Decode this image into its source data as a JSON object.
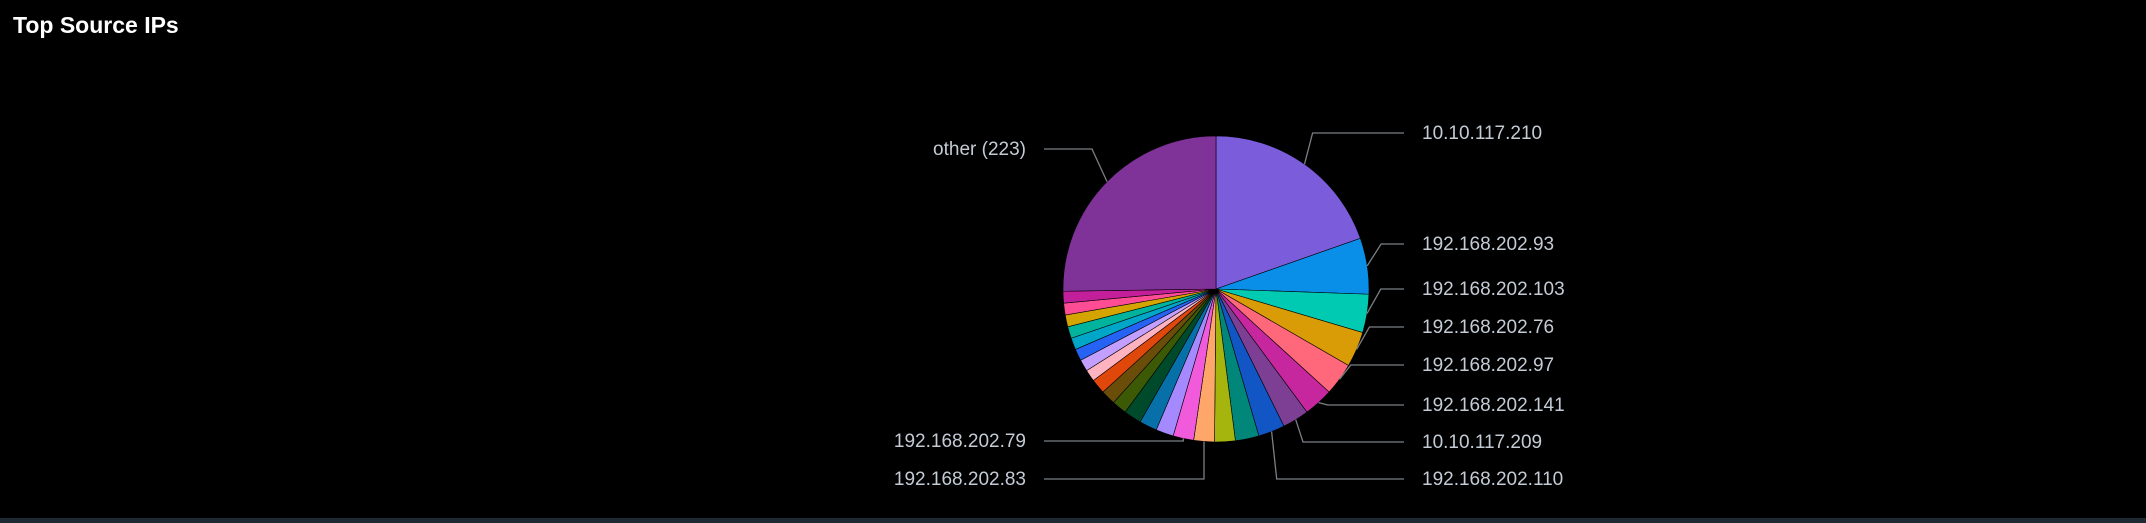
{
  "panel": {
    "title": "Top Source IPs"
  },
  "chart_data": {
    "type": "pie",
    "title": "Top Source IPs",
    "slices": [
      {
        "label": "10.10.117.210",
        "value": 63,
        "color": "#7b5cdb",
        "labeled": true
      },
      {
        "label": "192.168.202.93",
        "value": 19,
        "color": "#0a8fe8",
        "labeled": true
      },
      {
        "label": "192.168.202.103",
        "value": 13,
        "color": "#00cab1",
        "labeled": true
      },
      {
        "label": "192.168.202.76",
        "value": 12,
        "color": "#d99b06",
        "labeled": true
      },
      {
        "label": "192.168.202.97",
        "value": 11,
        "color": "#ff677a",
        "labeled": true
      },
      {
        "label": "192.168.202.141",
        "value": 10,
        "color": "#c6279e",
        "labeled": true
      },
      {
        "label": "10.10.117.209",
        "value": 9,
        "color": "#7c3f94",
        "labeled": true
      },
      {
        "label": "192.168.202.110",
        "value": 9,
        "color": "#1255c4",
        "labeled": true
      },
      {
        "label": "",
        "value": 8,
        "color": "#00877a",
        "labeled": false
      },
      {
        "label": "",
        "value": 7,
        "color": "#a6b40e",
        "labeled": false
      },
      {
        "label": "192.168.202.83",
        "value": 7,
        "color": "#ffa76b",
        "labeled": true
      },
      {
        "label": "192.168.202.79",
        "value": 7,
        "color": "#f15bdb",
        "labeled": true
      },
      {
        "label": "",
        "value": 6,
        "color": "#a58aff",
        "labeled": false
      },
      {
        "label": "",
        "value": 6,
        "color": "#0870a8",
        "labeled": false
      },
      {
        "label": "",
        "value": 6,
        "color": "#004a2c",
        "labeled": false
      },
      {
        "label": "",
        "value": 5,
        "color": "#3c5a05",
        "labeled": false
      },
      {
        "label": "",
        "value": 5,
        "color": "#6b4d0a",
        "labeled": false
      },
      {
        "label": "",
        "value": 5,
        "color": "#e0480b",
        "labeled": false
      },
      {
        "label": "",
        "value": 4,
        "color": "#ffb3c0",
        "labeled": false
      },
      {
        "label": "",
        "value": 4,
        "color": "#c3a0ff",
        "labeled": false
      },
      {
        "label": "",
        "value": 4,
        "color": "#2663f4",
        "labeled": false
      },
      {
        "label": "",
        "value": 4,
        "color": "#00a6c7",
        "labeled": false
      },
      {
        "label": "",
        "value": 4,
        "color": "#00b39d",
        "labeled": false
      },
      {
        "label": "",
        "value": 4,
        "color": "#d4a500",
        "labeled": false
      },
      {
        "label": "",
        "value": 4,
        "color": "#ff4d95",
        "labeled": false
      },
      {
        "label": "",
        "value": 4,
        "color": "#c31f9a",
        "labeled": false
      },
      {
        "label": "other (223)",
        "value": 81,
        "color": "#7f3298",
        "labeled": true
      }
    ],
    "legend": "none"
  }
}
